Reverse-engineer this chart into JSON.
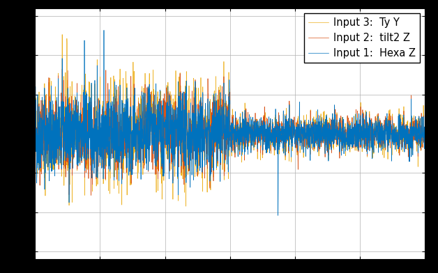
{
  "title": "",
  "legend_labels": [
    "Input 1:  Hexa Z",
    "Input 2:  tilt2 Z",
    "Input 3:  Ty Y"
  ],
  "line_colors": [
    "#0072bd",
    "#d95319",
    "#edb120"
  ],
  "background_color": "#ffffff",
  "outer_background": "#000000",
  "grid_color": "#b0b0b0",
  "n_points": 3000,
  "seed": 42,
  "ylim": [
    -1.6,
    1.6
  ],
  "xlim": [
    0,
    3000
  ],
  "linewidth": 0.5,
  "legend_fontsize": 10.5,
  "figsize": [
    6.28,
    3.92
  ],
  "dpi": 100
}
